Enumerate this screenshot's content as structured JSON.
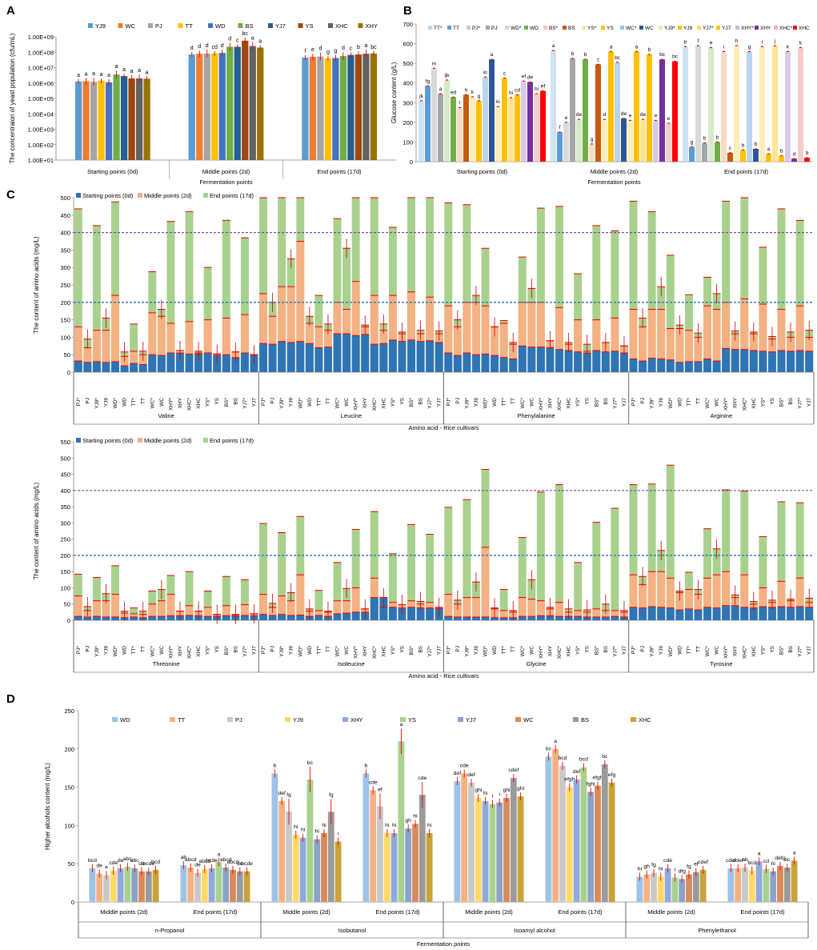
{
  "figure": {
    "panels": [
      "A",
      "B",
      "C",
      "D"
    ]
  },
  "chart_data": [
    {
      "panel": "A",
      "type": "bar",
      "ylabel": "The concentraion of yeast population (cfu/mL)",
      "xlabel": "Fermentation points",
      "yscale": "log",
      "yticks": [
        "1.00E+01",
        "1.00E+02",
        "1.00E+03",
        "1.00E+04",
        "1.00E+05",
        "1.00E+06",
        "1.00E+07",
        "1.00E+08",
        "1.00E+09"
      ],
      "ylim_log": [
        1,
        9
      ],
      "categories": [
        "Starting points (0d)",
        "Middle points (2d)",
        "End points (17d)"
      ],
      "series_names": [
        "YJ9",
        "WC",
        "PJ",
        "TT",
        "WD",
        "BS",
        "YJ7",
        "YS",
        "XHC",
        "XHY"
      ],
      "colors": [
        "#5b9bd5",
        "#ed7d31",
        "#a5a5a5",
        "#ffc000",
        "#4472c4",
        "#70ad47",
        "#255e91",
        "#9e480e",
        "#636363",
        "#997300"
      ],
      "values_log": [
        [
          6.1,
          6.12,
          6.08,
          6.15,
          6.05,
          6.55,
          6.45,
          6.3,
          6.3,
          6.28
        ],
        [
          7.85,
          7.9,
          7.92,
          7.92,
          7.95,
          8.35,
          8.35,
          8.75,
          8.4,
          8.3
        ],
        [
          7.65,
          7.7,
          7.72,
          7.6,
          7.62,
          7.75,
          7.82,
          7.85,
          7.9,
          7.92
        ]
      ],
      "letters": [
        [
          "a",
          "a",
          "a",
          "a",
          "a",
          "a",
          "a",
          "a",
          "a",
          "a"
        ],
        [
          "d",
          "d",
          "d",
          "cd",
          "d",
          "d",
          "c",
          "bc",
          "a",
          "a"
        ],
        [
          "f",
          "e",
          "d",
          "g",
          "g",
          "d",
          "c",
          "b",
          "a",
          "bc"
        ]
      ]
    },
    {
      "panel": "B",
      "type": "bar",
      "ylabel": "Glucose content (g/L)",
      "xlabel": "Fermentation points",
      "ylim": [
        0,
        700
      ],
      "yticks": [
        "0",
        "100",
        "200",
        "300",
        "400",
        "500",
        "600",
        "700"
      ],
      "categories": [
        "Starting points (0d)",
        "Middle points (2d)",
        "End points (17d)"
      ],
      "series_names": [
        "TT*",
        "TT",
        "PJ*",
        "PJ",
        "WD*",
        "WD",
        "BS*",
        "BS",
        "YS*",
        "YS",
        "WC*",
        "WC",
        "YJ9*",
        "YJ9",
        "YJ7*",
        "YJ7",
        "XHY*",
        "XHY",
        "XHC*",
        "XHC"
      ],
      "colors": [
        "#bdd7ee",
        "#5b9bd5",
        "#c9c9c9",
        "#a5a5a5",
        "#c5e0b4",
        "#70ad47",
        "#f8cbad",
        "#c55a11",
        "#ffe699",
        "#ffc000",
        "#9dc3e6",
        "#2f5597",
        "#ffe699",
        "#ffc000",
        "#ffd966",
        "#ffc000",
        "#c9b3e6",
        "#7030a0",
        "#f4b6b6",
        "#ff0000"
      ],
      "values": [
        [
          310,
          385,
          475,
          345,
          415,
          328,
          275,
          340,
          330,
          310,
          430,
          520,
          280,
          425,
          325,
          340,
          410,
          405,
          345,
          360
        ],
        [
          565,
          150,
          200,
          525,
          215,
          520,
          90,
          495,
          215,
          560,
          505,
          220,
          210,
          560,
          215,
          545,
          210,
          520,
          195,
          510
        ],
        [
          585,
          75,
          590,
          95,
          580,
          100,
          560,
          45,
          590,
          60,
          560,
          65,
          585,
          40,
          590,
          30,
          560,
          15,
          580,
          20
        ]
      ],
      "letters": [
        [
          "jk",
          "fg",
          "m",
          "a",
          "ijk",
          "ed",
          "l",
          "h",
          "k",
          "g",
          "ki",
          "a",
          "ki",
          "c",
          "hi",
          "cd",
          "ef",
          "de",
          "hi",
          "ef"
        ],
        [
          "a",
          "f",
          "e",
          "b",
          "de",
          "b",
          "g",
          "c",
          "d",
          "a",
          "bc",
          "de",
          "e",
          "a",
          "de",
          "b",
          "e",
          "bc",
          "e",
          "bc"
        ],
        [
          "b",
          "g",
          "f",
          "b",
          "e",
          "b",
          "i",
          "c",
          "h",
          "b",
          "g",
          "b",
          "i",
          "a",
          "j",
          "b",
          "k",
          "d",
          "k",
          "b"
        ]
      ]
    },
    {
      "panel": "C1",
      "type": "bar",
      "stacked": true,
      "ylabel": "The content of amino acids (mg/L)",
      "xlabel": "Amino acid - Rice cultivars",
      "ylim": [
        0,
        500
      ],
      "yticks": [
        "0",
        "50",
        "100",
        "150",
        "200",
        "250",
        "300",
        "350",
        "400",
        "450",
        "500"
      ],
      "legend": [
        "Starting points (0d)",
        "Middle points (2d)",
        "End points (17d)"
      ],
      "reference_lines": [
        200,
        400
      ],
      "groups": [
        "Valine",
        "Leucine",
        "Phenylalanine",
        "Arginine"
      ],
      "cultivars": [
        "PJ*",
        "PJ",
        "YJ9*",
        "YJ9",
        "WD*",
        "WD",
        "TT*",
        "TT",
        "WC*",
        "WC",
        "XHY*",
        "XHY",
        "XHC*",
        "XHC",
        "YS*",
        "YS",
        "BS*",
        "BS",
        "YJ7*",
        "YJ7"
      ],
      "start": [
        [
          32,
          28,
          30,
          28,
          30,
          18,
          25,
          22,
          50,
          48,
          55,
          55,
          52,
          52,
          55,
          48,
          50,
          42,
          55,
          50
        ],
        [
          82,
          80,
          88,
          85,
          88,
          82,
          70,
          72,
          110,
          110,
          105,
          108,
          80,
          82,
          92,
          88,
          92,
          88,
          90,
          85
        ],
        [
          55,
          48,
          55,
          50,
          52,
          48,
          42,
          38,
          75,
          72,
          72,
          70,
          65,
          62,
          58,
          55,
          62,
          58,
          60,
          55
        ],
        [
          38,
          32,
          40,
          38,
          35,
          28,
          30,
          30,
          38,
          32,
          68,
          65,
          65,
          62,
          60,
          58,
          62,
          60,
          62,
          60
        ]
      ],
      "middle": [
        [
          130,
          70,
          120,
          120,
          220,
          45,
          60,
          50,
          170,
          160,
          140,
          140,
          145,
          55,
          150,
          70,
          155,
          140,
          165,
          155
        ],
        [
          225,
          160,
          245,
          245,
          375,
          140,
          130,
          120,
          200,
          180,
          260,
          130,
          220,
          120,
          220,
          110,
          230,
          110,
          215,
          110
        ],
        [
          190,
          130,
          200,
          200,
          190,
          130,
          140,
          80,
          200,
          200,
          200,
          190,
          185,
          80,
          150,
          60,
          150,
          120,
          155,
          75
        ],
        [
          180,
          130,
          180,
          180,
          125,
          125,
          120,
          100,
          190,
          180,
          200,
          110,
          210,
          110,
          195,
          95,
          180,
          100,
          190,
          100
        ]
      ],
      "end": [
        [
          468,
          95,
          420,
          155,
          488,
          58,
          138,
          60,
          288,
          180,
          432,
          62,
          460,
          60,
          300,
          52,
          435,
          58,
          385,
          50
        ],
        [
          500,
          200,
          500,
          325,
          500,
          160,
          220,
          138,
          440,
          355,
          500,
          135,
          500,
          138,
          415,
          115,
          500,
          120,
          500,
          118
        ],
        [
          485,
          150,
          480,
          220,
          355,
          130,
          148,
          85,
          330,
          240,
          470,
          90,
          475,
          85,
          282,
          80,
          420,
          85,
          405,
          75
        ],
        [
          490,
          155,
          460,
          245,
          335,
          135,
          222,
          112,
          272,
          225,
          490,
          118,
          500,
          115,
          358,
          102,
          468,
          115,
          435,
          120
        ]
      ]
    },
    {
      "panel": "C2",
      "type": "bar",
      "stacked": true,
      "ylabel": "The content of amino acids (mg/L)",
      "xlabel": "Amino acid - Rice cultivars",
      "ylim": [
        0,
        550
      ],
      "yticks": [
        "0",
        "50",
        "100",
        "150",
        "200",
        "250",
        "300",
        "350",
        "400",
        "450",
        "500",
        "550"
      ],
      "legend": [
        "Starting points (0d)",
        "Middle points (2d)",
        "End points (17d)"
      ],
      "reference_lines": [
        200,
        400
      ],
      "groups": [
        "Threonine",
        "Isoleucine",
        "Glycine",
        "Tyrosine"
      ],
      "cultivars": [
        "PJ*",
        "PJ",
        "YJ9*",
        "YJ9",
        "WD*",
        "WD",
        "TT*",
        "TT",
        "WC*",
        "WC",
        "XHY*",
        "XHY",
        "XHC*",
        "XHC",
        "YS*",
        "YS",
        "BS*",
        "BS",
        "YJ7*",
        "YJ7"
      ],
      "start": [
        [
          12,
          10,
          12,
          10,
          10,
          8,
          10,
          8,
          12,
          12,
          14,
          14,
          15,
          14,
          12,
          12,
          14,
          14,
          15,
          14
        ],
        [
          18,
          15,
          18,
          15,
          16,
          12,
          15,
          12,
          20,
          22,
          25,
          25,
          70,
          70,
          40,
          38,
          40,
          38,
          38,
          36
        ],
        [
          12,
          10,
          10,
          10,
          10,
          8,
          8,
          8,
          12,
          12,
          14,
          14,
          12,
          12,
          12,
          10,
          10,
          10,
          12,
          10
        ],
        [
          40,
          38,
          42,
          40,
          38,
          32,
          35,
          32,
          40,
          38,
          45,
          45,
          40,
          38,
          42,
          40,
          42,
          40,
          42,
          40
        ]
      ],
      "middle": [
        [
          75,
          30,
          60,
          60,
          80,
          22,
          20,
          18,
          50,
          60,
          80,
          40,
          45,
          35,
          40,
          25,
          45,
          35,
          48,
          20
        ],
        [
          80,
          40,
          75,
          60,
          140,
          28,
          30,
          25,
          60,
          60,
          100,
          40,
          130,
          40,
          55,
          50,
          60,
          50,
          55,
          40
        ],
        [
          80,
          50,
          70,
          70,
          225,
          35,
          30,
          25,
          70,
          65,
          60,
          35,
          55,
          25,
          30,
          25,
          35,
          30,
          30,
          25
        ],
        [
          140,
          110,
          150,
          150,
          130,
          85,
          95,
          80,
          130,
          140,
          150,
          70,
          140,
          50,
          100,
          55,
          120,
          60,
          130,
          55
        ]
      ],
      "end": [
        [
          142,
          42,
          132,
          82,
          168,
          28,
          38,
          28,
          90,
          95,
          138,
          28,
          150,
          28,
          90,
          18,
          135,
          18,
          125,
          20
        ],
        [
          298,
          52,
          270,
          85,
          320,
          35,
          92,
          28,
          178,
          98,
          280,
          35,
          335,
          70,
          205,
          48,
          295,
          58,
          265,
          40
        ],
        [
          348,
          62,
          372,
          118,
          465,
          38,
          95,
          30,
          255,
          125,
          395,
          40,
          418,
          35,
          178,
          32,
          302,
          50,
          345,
          30
        ],
        [
          418,
          135,
          420,
          215,
          478,
          90,
          148,
          95,
          282,
          220,
          402,
          78,
          398,
          58,
          258,
          62,
          365,
          65,
          362,
          68
        ]
      ]
    },
    {
      "panel": "D",
      "type": "bar",
      "ylabel": "Higher alcohols content (mg/L)",
      "xlabel": "Fermentation points",
      "ylim": [
        0,
        250
      ],
      "yticks": [
        "0",
        "50",
        "100",
        "150",
        "200",
        "250"
      ],
      "series_names": [
        "WD",
        "TT",
        "PJ",
        "YJ9",
        "XHY",
        "YS",
        "YJ7",
        "WC",
        "BS",
        "XHC"
      ],
      "colors": [
        "#9dc3e6",
        "#f4b183",
        "#c9c9c9",
        "#ffd966",
        "#8faadc",
        "#a9d18e",
        "#8aa3c6",
        "#d88a5a",
        "#9a9a9a",
        "#c9a23a"
      ],
      "groups": [
        "n-Propanol",
        "Isobutanol",
        "Isoamyl alcohol",
        "Phenylethanol"
      ],
      "subgroups": [
        "Middle points (2d)",
        "End points (17d)"
      ],
      "values": [
        [
          [
            44,
            37,
            35,
            41,
            44,
            46,
            44,
            40,
            40,
            42
          ],
          [
            48,
            45,
            38,
            43,
            44,
            52,
            45,
            42,
            40,
            40
          ]
        ],
        [
          [
            168,
            132,
            118,
            88,
            84,
            160,
            82,
            90,
            118,
            79
          ],
          [
            168,
            146,
            125,
            90,
            90,
            210,
            96,
            102,
            140,
            90
          ]
        ],
        [
          [
            158,
            168,
            156,
            136,
            132,
            128,
            130,
            136,
            162,
            138
          ],
          [
            190,
            200,
            178,
            150,
            160,
            176,
            144,
            152,
            180,
            156
          ]
        ],
        [
          [
            33,
            36,
            38,
            33,
            44,
            32,
            30,
            36,
            39,
            42
          ],
          [
            44,
            44,
            45,
            41,
            53,
            43,
            40,
            47,
            45,
            54
          ]
        ]
      ],
      "letters": [
        [
          [
            "bcd",
            "de",
            "e",
            "cde",
            "de",
            "abc",
            "abc",
            "de",
            "bcde",
            "bcd"
          ],
          [
            "ab",
            "abcd",
            "de",
            "abcd",
            "bcde",
            "a",
            "abcd",
            "abcd",
            "de",
            "bcde"
          ]
        ],
        [
          [
            "b",
            "def",
            "fg",
            "hi",
            "hi",
            "bc",
            "hi",
            "hi",
            "fg",
            "i"
          ],
          [
            "b",
            "cde",
            "ef",
            "hi",
            "hi",
            "a",
            "gh",
            "hi",
            "cde",
            "hi"
          ]
        ],
        [
          [
            "def",
            "cde",
            "def",
            "ghi",
            "hi",
            "i",
            "i",
            "ghi",
            "cdef",
            "ghi"
          ],
          [
            "bc",
            "a",
            "bcd",
            "efgh",
            "def",
            "bcd",
            "fghi",
            "efgh",
            "bc",
            "efg"
          ]
        ],
        [
          [
            "hi",
            "gh",
            "fg",
            "hi",
            "cde",
            "i",
            "dfg",
            "fg",
            "ef",
            "cdef"
          ],
          [
            "cdef",
            "cdef",
            "ab",
            "bcd",
            "a",
            "cd",
            "hi",
            "defg",
            "bc",
            "a"
          ]
        ]
      ]
    }
  ]
}
